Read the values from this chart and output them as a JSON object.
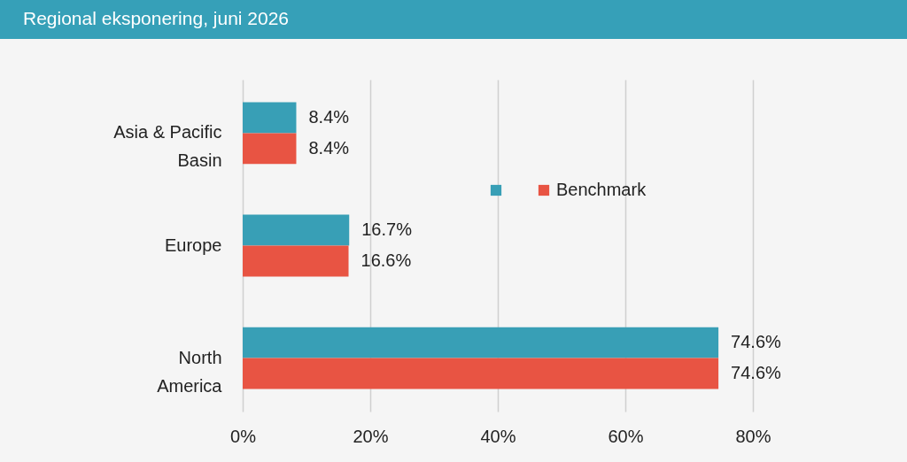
{
  "chart_data": {
    "type": "bar",
    "orientation": "horizontal",
    "title": "Regional eksponering, juni 2026",
    "categories": [
      "Asia & Pacific Basin",
      "Europe",
      "North America"
    ],
    "series": [
      {
        "color": "#389fb6",
        "values": [
          8.4,
          16.7,
          74.6
        ],
        "value_labels": [
          "8.4%",
          "16.7%",
          "74.6%"
        ]
      },
      {
        "name": "Benchmark",
        "color": "#e85443",
        "values": [
          8.4,
          16.6,
          74.6
        ],
        "value_labels": [
          "8.4%",
          "16.6%",
          "74.6%"
        ]
      }
    ],
    "xlim": [
      0,
      80
    ],
    "xticks": [
      {
        "value": 0,
        "label": "0%"
      },
      {
        "value": 20,
        "label": "20%"
      },
      {
        "value": 40,
        "label": "40%"
      },
      {
        "value": 60,
        "label": "60%"
      },
      {
        "value": 80,
        "label": "80%"
      }
    ],
    "grid": "x",
    "legend": "top right"
  }
}
